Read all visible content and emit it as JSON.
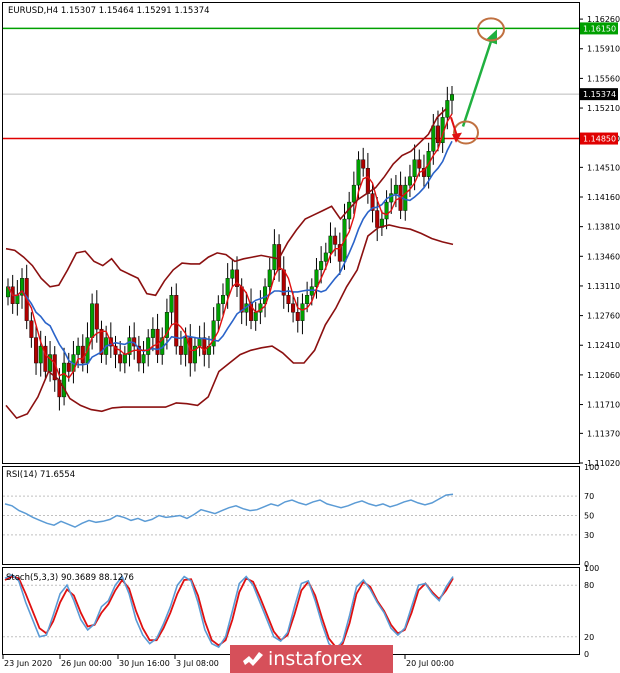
{
  "chart_data": [
    {
      "type": "candlestick",
      "header": "EURUSD,H4  1.15307 1.15464 1.15291 1.15374",
      "y_ticks": [
        "1.16260",
        "1.15910",
        "1.15560",
        "1.15210",
        "1.14850",
        "1.14510",
        "1.14160",
        "1.13810",
        "1.13460",
        "1.13110",
        "1.12760",
        "1.12410",
        "1.12060",
        "1.11710",
        "1.11370",
        "1.11020"
      ],
      "ylim": [
        1.1102,
        1.1645
      ],
      "price_labels": [
        {
          "text": "1.16150",
          "value": 1.1615,
          "color": "#00a000"
        },
        {
          "text": "1.15374",
          "value": 1.15374,
          "color": "#000000"
        },
        {
          "text": "1.14850",
          "value": 1.1485,
          "color": "#e00000"
        }
      ],
      "levels": [
        {
          "value": 1.1615,
          "color": "#00a000"
        },
        {
          "value": 1.1485,
          "color": "#e00000"
        }
      ],
      "x_labels": [
        "23 Jun 2020",
        "26 Jun 00:00",
        "30 Jun 16:00",
        "3 Jul 08:00",
        "20 Jul 00:00"
      ],
      "close": [
        1.131,
        1.129,
        1.13,
        1.132,
        1.127,
        1.125,
        1.122,
        1.124,
        1.121,
        1.123,
        1.12,
        1.118,
        1.122,
        1.121,
        1.123,
        1.124,
        1.122,
        1.125,
        1.129,
        1.126,
        1.123,
        1.125,
        1.124,
        1.123,
        1.122,
        1.123,
        1.125,
        1.124,
        1.122,
        1.123,
        1.125,
        1.126,
        1.123,
        1.125,
        1.128,
        1.13,
        1.124,
        1.123,
        1.125,
        1.122,
        1.124,
        1.125,
        1.123,
        1.124,
        1.127,
        1.129,
        1.13,
        1.132,
        1.133,
        1.131,
        1.128,
        1.129,
        1.127,
        1.128,
        1.129,
        1.131,
        1.133,
        1.136,
        1.133,
        1.13,
        1.129,
        1.128,
        1.127,
        1.129,
        1.13,
        1.131,
        1.133,
        1.134,
        1.135,
        1.137,
        1.136,
        1.134,
        1.139,
        1.141,
        1.143,
        1.146,
        1.145,
        1.142,
        1.14,
        1.138,
        1.139,
        1.141,
        1.142,
        1.143,
        1.14,
        1.143,
        1.144,
        1.146,
        1.145,
        1.144,
        1.147,
        1.15,
        1.148,
        1.151,
        1.153,
        1.1537
      ],
      "bollinger_upper": [
        1.1355,
        1.1353,
        1.1345,
        1.1335,
        1.132,
        1.131,
        1.1312,
        1.133,
        1.135,
        1.1352,
        1.134,
        1.1335,
        1.1343,
        1.133,
        1.1325,
        1.132,
        1.1302,
        1.13,
        1.1317,
        1.133,
        1.1338,
        1.1337,
        1.1337,
        1.1345,
        1.135,
        1.1348,
        1.134,
        1.1343,
        1.1345,
        1.1347,
        1.1345,
        1.1343,
        1.1362,
        1.1377,
        1.139,
        1.1395,
        1.14,
        1.1405,
        1.139,
        1.1402,
        1.1413,
        1.142,
        1.1427,
        1.144,
        1.1455,
        1.1465,
        1.147,
        1.148,
        1.149,
        1.151,
        1.152
      ],
      "bollinger_middle": [
        1.1245,
        1.126,
        1.127,
        1.1258,
        1.124,
        1.1233,
        1.1223,
        1.1223,
        1.123,
        1.1235,
        1.1232,
        1.1227,
        1.1233,
        1.1232,
        1.123,
        1.123,
        1.1231,
        1.1233,
        1.1245,
        1.1257,
        1.1267,
        1.1265,
        1.126,
        1.1265,
        1.1275,
        1.128,
        1.1278,
        1.1282,
        1.129,
        1.1295,
        1.1302,
        1.1312,
        1.133,
        1.135,
        1.1367,
        1.1375,
        1.1385,
        1.1392,
        1.1395,
        1.1398,
        1.1405,
        1.1415,
        1.1425,
        1.144,
        1.1455,
        1.1465,
        1.147,
        1.148,
        1.149,
        1.15,
        1.151
      ],
      "bollinger_lower": [
        1.117,
        1.1155,
        1.116,
        1.118,
        1.121,
        1.12,
        1.1178,
        1.117,
        1.1165,
        1.1163,
        1.1167,
        1.1168,
        1.1168,
        1.1168,
        1.1168,
        1.1168,
        1.1173,
        1.1172,
        1.117,
        1.118,
        1.121,
        1.122,
        1.123,
        1.1235,
        1.1238,
        1.124,
        1.1232,
        1.122,
        1.122,
        1.1235,
        1.1265,
        1.1285,
        1.131,
        1.133,
        1.137,
        1.138,
        1.1383,
        1.138,
        1.1378,
        1.1373,
        1.1367,
        1.1363,
        1.136
      ],
      "annotations": [
        "up-arrow to 1.16150",
        "circle at 1.16150",
        "circle at 1.14850",
        "small red down-arrow"
      ]
    },
    {
      "type": "line",
      "title": "RSI(14) 71.6554",
      "y_ticks": [
        "100",
        "70",
        "50",
        "30",
        "0"
      ],
      "ylim": [
        0,
        100
      ],
      "series": [
        {
          "values": [
            62,
            60,
            55,
            52,
            48,
            45,
            42,
            40,
            44,
            41,
            38,
            42,
            45,
            43,
            44,
            46,
            50,
            48,
            45,
            47,
            44,
            46,
            50,
            48,
            49,
            50,
            47,
            51,
            56,
            54,
            52,
            55,
            58,
            60,
            57,
            55,
            56,
            59,
            62,
            60,
            64,
            66,
            63,
            61,
            64,
            66,
            62,
            60,
            58,
            60,
            63,
            65,
            62,
            60,
            62,
            59,
            61,
            64,
            66,
            63,
            61,
            63,
            67,
            71,
            72
          ]
        }
      ]
    },
    {
      "type": "line",
      "title": "Stoch(5,3,3) 90.3689 88.1276",
      "y_ticks": [
        "100",
        "80",
        "20",
        "0"
      ],
      "ylim": [
        0,
        100
      ],
      "series": [
        {
          "values": [
            88,
            92,
            85,
            60,
            40,
            20,
            22,
            45,
            70,
            80,
            62,
            40,
            28,
            35,
            55,
            62,
            80,
            90,
            70,
            40,
            22,
            12,
            18,
            35,
            55,
            80,
            90,
            85,
            60,
            28,
            12,
            8,
            20,
            50,
            82,
            90,
            80,
            60,
            40,
            20,
            15,
            25,
            55,
            82,
            85,
            62,
            35,
            12,
            5,
            15,
            45,
            78,
            86,
            75,
            60,
            48,
            30,
            22,
            30,
            55,
            80,
            82,
            70,
            62,
            78,
            90
          ]
        },
        {
          "values": [
            86,
            90,
            88,
            70,
            50,
            30,
            24,
            38,
            60,
            75,
            68,
            48,
            32,
            34,
            48,
            58,
            74,
            86,
            76,
            50,
            30,
            16,
            16,
            30,
            48,
            70,
            86,
            87,
            68,
            38,
            16,
            10,
            16,
            40,
            72,
            88,
            84,
            66,
            46,
            26,
            16,
            22,
            46,
            74,
            84,
            68,
            42,
            18,
            8,
            12,
            36,
            70,
            84,
            78,
            62,
            50,
            34,
            24,
            28,
            48,
            74,
            82,
            72,
            64,
            74,
            88
          ]
        }
      ]
    }
  ],
  "colors": {
    "candle_up": "#00a000",
    "candle_down": "#b00000",
    "bollinger": "#8b1010",
    "ma_blue": "#2a63c9",
    "ma_red": "#e01010",
    "rsi": "#5b9bd5",
    "stoch_main": "#5b9bd5",
    "stoch_signal": "#e01010"
  },
  "watermark": {
    "brand": "instaforex",
    "icon": "instaforex-logo-icon"
  }
}
